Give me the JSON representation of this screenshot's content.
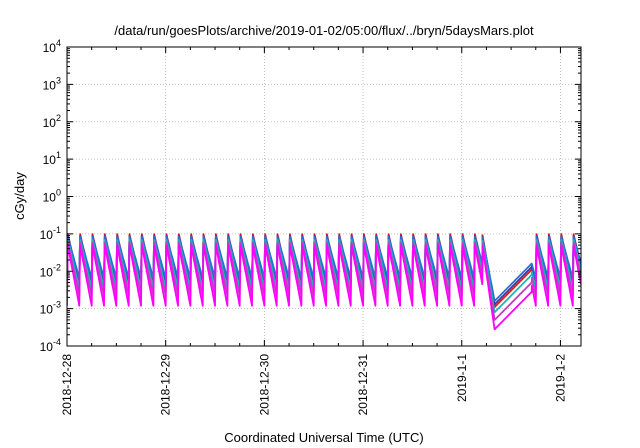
{
  "chart_data": {
    "type": "line",
    "title": "/data/run/goesPlots/archive/2019-01-02/05:00/flux/../bryn/5daysMars.plot",
    "xlabel": "Coordinated Universal Time (UTC)",
    "ylabel": "cGy/day",
    "y_scale": "log",
    "ylim": [
      0.0001,
      10000
    ],
    "xlim": [
      "2018-12-28 00:00",
      "2019-01-02 05:00"
    ],
    "grid": true,
    "legend": "none",
    "y_ticks": [
      {
        "base": "10",
        "exp": "-4"
      },
      {
        "base": "10",
        "exp": "-3"
      },
      {
        "base": "10",
        "exp": "-2"
      },
      {
        "base": "10",
        "exp": "-1"
      },
      {
        "base": "10",
        "exp": "0"
      },
      {
        "base": "10",
        "exp": "1"
      },
      {
        "base": "10",
        "exp": "2"
      },
      {
        "base": "10",
        "exp": "3"
      },
      {
        "base": "10",
        "exp": "4"
      }
    ],
    "x_ticks": [
      "2018-12-28",
      "2018-12-29",
      "2018-12-30",
      "2018-12-31",
      "2019-1-1",
      "2019-1-2"
    ],
    "cycle_hours": 3,
    "dip": {
      "start_hour": 101,
      "end_hour": 113
    },
    "series": [
      {
        "color": "#e41a1c",
        "peak": 0.1,
        "trough": 0.0045,
        "dip_min": 0.0011
      },
      {
        "color": "#3a3aa0",
        "peak": 0.09,
        "trough": 0.0055,
        "dip_min": 0.0013
      },
      {
        "color": "#2a6fd6",
        "peak": 0.085,
        "trough": 0.0065,
        "dip_min": 0.0016
      },
      {
        "color": "#19b6b6",
        "peak": 0.07,
        "trough": 0.0035,
        "dip_min": 0.0008
      },
      {
        "color": "#c43cc0",
        "peak": 0.06,
        "trough": 0.0022,
        "dip_min": 0.0005
      },
      {
        "color": "#ff00ff",
        "peak": 0.05,
        "trough": 0.0012,
        "dip_min": 0.00028
      }
    ]
  }
}
